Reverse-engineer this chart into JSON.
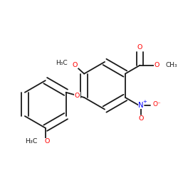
{
  "bg": "#ffffff",
  "bc": "#1a1a1a",
  "bw": 1.3,
  "dbo": 0.04,
  "fs": 6.8,
  "figsize": [
    2.5,
    2.5
  ],
  "dpi": 100,
  "xlim": [
    -1.05,
    0.92
  ],
  "ylim": [
    -0.12,
    1.08
  ]
}
